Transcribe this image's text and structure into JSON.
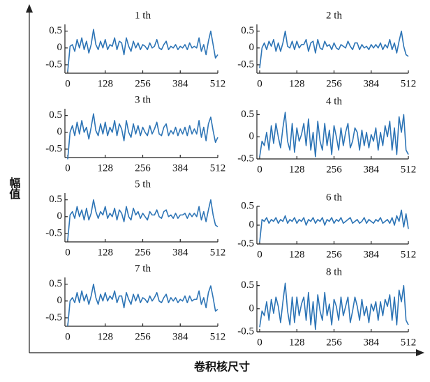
{
  "figure": {
    "y_label": "幅值",
    "x_label": "卷积核尺寸"
  },
  "chart_data": [
    {
      "type": "line",
      "title": "1 th",
      "color": "#2e75b6",
      "xlim": [
        0,
        512
      ],
      "xticks": [
        0,
        128,
        256,
        384,
        512
      ],
      "ylim": [
        -0.75,
        0.7
      ],
      "yticks": [
        -0.5,
        0,
        0.5
      ],
      "x": [
        0,
        8,
        16,
        24,
        32,
        40,
        48,
        56,
        64,
        72,
        80,
        88,
        96,
        104,
        112,
        120,
        128,
        136,
        144,
        152,
        160,
        168,
        176,
        184,
        192,
        200,
        208,
        216,
        224,
        232,
        240,
        248,
        256,
        264,
        272,
        280,
        288,
        296,
        304,
        312,
        320,
        328,
        336,
        344,
        352,
        360,
        368,
        376,
        384,
        392,
        400,
        408,
        416,
        424,
        432,
        440,
        448,
        456,
        464,
        472,
        480,
        488,
        496,
        504,
        512
      ],
      "values": [
        -0.7,
        0.05,
        0.1,
        -0.1,
        0.25,
        0.0,
        0.3,
        -0.05,
        0.2,
        -0.15,
        0.1,
        0.55,
        0.1,
        -0.05,
        0.2,
        0.0,
        0.25,
        -0.05,
        0.1,
        0.05,
        0.3,
        -0.05,
        0.2,
        0.15,
        -0.2,
        0.3,
        0.05,
        -0.1,
        0.2,
        0.0,
        0.15,
        -0.05,
        0.1,
        0.05,
        -0.05,
        0.15,
        0.0,
        0.05,
        0.25,
        0.0,
        -0.05,
        0.1,
        0.2,
        -0.05,
        0.05,
        0.0,
        0.1,
        -0.05,
        0.05,
        0.0,
        0.1,
        -0.05,
        0.15,
        0.0,
        0.05,
        0.0,
        0.3,
        -0.1,
        0.1,
        -0.2,
        0.2,
        0.5,
        0.1,
        -0.3,
        -0.2
      ]
    },
    {
      "type": "line",
      "title": "2 th",
      "color": "#2e75b6",
      "xlim": [
        0,
        512
      ],
      "xticks": [
        0,
        128,
        256,
        384,
        512
      ],
      "ylim": [
        -0.75,
        0.7
      ],
      "yticks": [
        -0.5,
        0,
        0.5
      ],
      "x": [
        0,
        8,
        16,
        24,
        32,
        40,
        48,
        56,
        64,
        72,
        80,
        88,
        96,
        104,
        112,
        120,
        128,
        136,
        144,
        152,
        160,
        168,
        176,
        184,
        192,
        200,
        208,
        216,
        224,
        232,
        240,
        248,
        256,
        264,
        272,
        280,
        288,
        296,
        304,
        312,
        320,
        328,
        336,
        344,
        352,
        360,
        368,
        376,
        384,
        392,
        400,
        408,
        416,
        424,
        432,
        440,
        448,
        456,
        464,
        472,
        480,
        488,
        496,
        504,
        512
      ],
      "values": [
        -0.6,
        0.0,
        0.15,
        -0.05,
        0.2,
        0.05,
        0.25,
        -0.1,
        0.15,
        -0.1,
        0.15,
        0.5,
        0.05,
        0.0,
        0.2,
        -0.05,
        0.2,
        0.0,
        0.1,
        0.1,
        0.25,
        -0.1,
        0.15,
        0.2,
        -0.15,
        0.25,
        0.0,
        -0.05,
        0.2,
        0.05,
        0.1,
        -0.05,
        0.15,
        0.0,
        -0.05,
        0.1,
        0.05,
        0.0,
        0.2,
        0.05,
        -0.05,
        0.15,
        0.15,
        -0.05,
        0.1,
        0.0,
        0.05,
        -0.05,
        0.1,
        0.0,
        0.1,
        0.0,
        0.15,
        -0.05,
        0.1,
        0.0,
        0.25,
        -0.05,
        0.15,
        -0.15,
        0.2,
        0.5,
        0.05,
        -0.2,
        -0.25
      ]
    },
    {
      "type": "line",
      "title": "3 th",
      "color": "#2e75b6",
      "xlim": [
        0,
        512
      ],
      "xticks": [
        0,
        128,
        256,
        384,
        512
      ],
      "ylim": [
        -0.75,
        0.7
      ],
      "yticks": [
        -0.5,
        0,
        0.5
      ],
      "x": [
        0,
        8,
        16,
        24,
        32,
        40,
        48,
        56,
        64,
        72,
        80,
        88,
        96,
        104,
        112,
        120,
        128,
        136,
        144,
        152,
        160,
        168,
        176,
        184,
        192,
        200,
        208,
        216,
        224,
        232,
        240,
        248,
        256,
        264,
        272,
        280,
        288,
        296,
        304,
        312,
        320,
        328,
        336,
        344,
        352,
        360,
        368,
        376,
        384,
        392,
        400,
        408,
        416,
        424,
        432,
        440,
        448,
        456,
        464,
        472,
        480,
        488,
        496,
        504,
        512
      ],
      "values": [
        -0.8,
        0.0,
        0.2,
        -0.1,
        0.3,
        -0.05,
        0.35,
        0.0,
        0.15,
        -0.2,
        0.15,
        0.55,
        0.05,
        -0.1,
        0.25,
        -0.05,
        0.3,
        -0.1,
        0.15,
        0.0,
        0.35,
        -0.1,
        0.25,
        0.1,
        -0.25,
        0.35,
        0.0,
        -0.15,
        0.25,
        -0.05,
        0.2,
        -0.1,
        0.15,
        0.0,
        -0.1,
        0.2,
        -0.05,
        0.1,
        0.3,
        -0.05,
        -0.1,
        0.15,
        0.25,
        -0.1,
        0.05,
        -0.05,
        0.15,
        -0.1,
        0.1,
        -0.05,
        0.15,
        -0.1,
        0.2,
        -0.05,
        0.1,
        -0.05,
        0.35,
        -0.15,
        0.15,
        -0.25,
        0.25,
        0.45,
        0.05,
        -0.3,
        -0.15
      ]
    },
    {
      "type": "line",
      "title": "4 th",
      "color": "#2e75b6",
      "xlim": [
        0,
        512
      ],
      "xticks": [
        0,
        128,
        256,
        384,
        512
      ],
      "ylim": [
        -0.5,
        0.6
      ],
      "yticks": [
        -0.5,
        0,
        0.5
      ],
      "x": [
        0,
        8,
        16,
        24,
        32,
        40,
        48,
        56,
        64,
        72,
        80,
        88,
        96,
        104,
        112,
        120,
        128,
        136,
        144,
        152,
        160,
        168,
        176,
        184,
        192,
        200,
        208,
        216,
        224,
        232,
        240,
        248,
        256,
        264,
        272,
        280,
        288,
        296,
        304,
        312,
        320,
        328,
        336,
        344,
        352,
        360,
        368,
        376,
        384,
        392,
        400,
        408,
        416,
        424,
        432,
        440,
        448,
        456,
        464,
        472,
        480,
        488,
        496,
        504,
        512
      ],
      "values": [
        -0.45,
        -0.1,
        -0.2,
        0.1,
        -0.3,
        0.25,
        -0.15,
        0.3,
        0.0,
        -0.25,
        0.2,
        0.55,
        -0.1,
        -0.3,
        0.3,
        -0.35,
        0.2,
        -0.1,
        0.05,
        0.3,
        -0.2,
        0.4,
        -0.3,
        0.1,
        -0.45,
        0.35,
        -0.1,
        -0.3,
        0.3,
        -0.2,
        0.15,
        -0.4,
        0.25,
        0.0,
        -0.3,
        0.2,
        -0.2,
        0.1,
        0.3,
        -0.25,
        -0.1,
        0.2,
        0.1,
        -0.3,
        0.15,
        -0.2,
        0.1,
        -0.25,
        0.05,
        -0.1,
        0.2,
        -0.3,
        0.1,
        -0.2,
        0.25,
        0.0,
        0.35,
        -0.3,
        0.2,
        -0.4,
        0.45,
        0.1,
        0.5,
        -0.3,
        -0.4
      ]
    },
    {
      "type": "line",
      "title": "5 th",
      "color": "#2e75b6",
      "xlim": [
        0,
        512
      ],
      "xticks": [
        0,
        128,
        256,
        384,
        512
      ],
      "ylim": [
        -0.75,
        0.7
      ],
      "yticks": [
        -0.5,
        0,
        0.5
      ],
      "x": [
        0,
        8,
        16,
        24,
        32,
        40,
        48,
        56,
        64,
        72,
        80,
        88,
        96,
        104,
        112,
        120,
        128,
        136,
        144,
        152,
        160,
        168,
        176,
        184,
        192,
        200,
        208,
        216,
        224,
        232,
        240,
        248,
        256,
        264,
        272,
        280,
        288,
        296,
        304,
        312,
        320,
        328,
        336,
        344,
        352,
        360,
        368,
        376,
        384,
        392,
        400,
        408,
        416,
        424,
        432,
        440,
        448,
        456,
        464,
        472,
        480,
        488,
        496,
        504,
        512
      ],
      "values": [
        -0.7,
        0.05,
        0.15,
        -0.05,
        0.3,
        0.0,
        0.2,
        -0.1,
        0.25,
        -0.1,
        0.1,
        0.5,
        0.15,
        -0.05,
        0.15,
        0.05,
        0.3,
        -0.05,
        0.1,
        0.0,
        0.25,
        -0.1,
        0.2,
        0.1,
        -0.15,
        0.3,
        0.0,
        -0.1,
        0.25,
        0.05,
        0.15,
        -0.05,
        0.1,
        0.0,
        -0.1,
        0.15,
        0.05,
        0.05,
        0.2,
        0.0,
        -0.05,
        0.15,
        0.2,
        0.0,
        0.05,
        -0.05,
        0.1,
        -0.05,
        0.05,
        0.05,
        0.1,
        -0.05,
        0.1,
        0.0,
        0.1,
        0.0,
        0.3,
        -0.1,
        0.15,
        -0.15,
        0.2,
        0.5,
        0.05,
        -0.25,
        -0.3
      ]
    },
    {
      "type": "line",
      "title": "6 th",
      "color": "#2e75b6",
      "xlim": [
        0,
        512
      ],
      "xticks": [
        0,
        128,
        256,
        384,
        512
      ],
      "ylim": [
        -0.5,
        0.5
      ],
      "yticks": [
        -0.5,
        0,
        0.5
      ],
      "x": [
        0,
        8,
        16,
        24,
        32,
        40,
        48,
        56,
        64,
        72,
        80,
        88,
        96,
        104,
        112,
        120,
        128,
        136,
        144,
        152,
        160,
        168,
        176,
        184,
        192,
        200,
        208,
        216,
        224,
        232,
        240,
        248,
        256,
        264,
        272,
        280,
        288,
        296,
        304,
        312,
        320,
        328,
        336,
        344,
        352,
        360,
        368,
        376,
        384,
        392,
        400,
        408,
        416,
        424,
        432,
        440,
        448,
        456,
        464,
        472,
        480,
        488,
        496,
        504,
        512
      ],
      "values": [
        -0.45,
        0.15,
        0.1,
        0.2,
        0.05,
        0.15,
        0.1,
        0.2,
        0.05,
        0.15,
        0.1,
        0.25,
        0.05,
        0.15,
        0.1,
        0.2,
        0.05,
        0.15,
        0.1,
        0.2,
        0.0,
        0.15,
        0.1,
        0.2,
        0.05,
        0.15,
        0.1,
        0.2,
        0.0,
        0.15,
        0.1,
        0.2,
        0.05,
        0.15,
        0.1,
        0.2,
        0.05,
        0.1,
        0.15,
        0.2,
        0.05,
        0.1,
        0.15,
        0.05,
        0.1,
        0.2,
        0.05,
        0.15,
        0.1,
        0.05,
        0.15,
        0.1,
        0.2,
        0.05,
        0.1,
        0.15,
        0.05,
        0.2,
        0.0,
        0.25,
        0.1,
        0.4,
        -0.05,
        0.3,
        -0.1
      ]
    },
    {
      "type": "line",
      "title": "7 th",
      "color": "#2e75b6",
      "xlim": [
        0,
        512
      ],
      "xticks": [
        0,
        128,
        256,
        384,
        512
      ],
      "ylim": [
        -0.75,
        0.7
      ],
      "yticks": [
        -0.5,
        0,
        0.5
      ],
      "x": [
        0,
        8,
        16,
        24,
        32,
        40,
        48,
        56,
        64,
        72,
        80,
        88,
        96,
        104,
        112,
        120,
        128,
        136,
        144,
        152,
        160,
        168,
        176,
        184,
        192,
        200,
        208,
        216,
        224,
        232,
        240,
        248,
        256,
        264,
        272,
        280,
        288,
        296,
        304,
        312,
        320,
        328,
        336,
        344,
        352,
        360,
        368,
        376,
        384,
        392,
        400,
        408,
        416,
        424,
        432,
        440,
        448,
        456,
        464,
        472,
        480,
        488,
        496,
        504,
        512
      ],
      "values": [
        -0.75,
        0.0,
        0.1,
        -0.05,
        0.25,
        -0.05,
        0.3,
        0.0,
        0.2,
        -0.1,
        0.15,
        0.5,
        0.1,
        -0.1,
        0.2,
        0.0,
        0.25,
        0.0,
        0.15,
        0.05,
        0.3,
        -0.05,
        0.15,
        0.15,
        -0.2,
        0.25,
        0.05,
        -0.1,
        0.2,
        0.0,
        0.2,
        -0.05,
        0.1,
        0.05,
        -0.05,
        0.15,
        0.0,
        0.1,
        0.25,
        0.0,
        -0.05,
        0.1,
        0.2,
        -0.05,
        0.1,
        0.0,
        0.1,
        -0.05,
        0.05,
        0.0,
        0.15,
        -0.05,
        0.15,
        0.0,
        0.05,
        0.05,
        0.3,
        -0.1,
        0.1,
        -0.2,
        0.25,
        0.45,
        0.1,
        -0.3,
        -0.25
      ]
    },
    {
      "type": "line",
      "title": "8 th",
      "color": "#2e75b6",
      "xlim": [
        0,
        512
      ],
      "xticks": [
        0,
        128,
        256,
        384,
        512
      ],
      "ylim": [
        -0.5,
        0.6
      ],
      "yticks": [
        -0.5,
        0,
        0.5
      ],
      "x": [
        0,
        8,
        16,
        24,
        32,
        40,
        48,
        56,
        64,
        72,
        80,
        88,
        96,
        104,
        112,
        120,
        128,
        136,
        144,
        152,
        160,
        168,
        176,
        184,
        192,
        200,
        208,
        216,
        224,
        232,
        240,
        248,
        256,
        264,
        272,
        280,
        288,
        296,
        304,
        312,
        320,
        328,
        336,
        344,
        352,
        360,
        368,
        376,
        384,
        392,
        400,
        408,
        416,
        424,
        432,
        440,
        448,
        456,
        464,
        472,
        480,
        488,
        496,
        504,
        512
      ],
      "values": [
        -0.4,
        -0.05,
        -0.15,
        0.15,
        -0.25,
        0.2,
        -0.1,
        0.25,
        0.05,
        -0.3,
        0.15,
        0.55,
        -0.05,
        -0.35,
        0.25,
        -0.3,
        0.25,
        -0.15,
        0.1,
        0.25,
        -0.25,
        0.35,
        -0.35,
        0.15,
        -0.45,
        0.3,
        -0.05,
        -0.25,
        0.35,
        -0.15,
        0.1,
        -0.35,
        0.2,
        0.05,
        -0.25,
        0.25,
        -0.15,
        0.05,
        0.25,
        -0.3,
        -0.05,
        0.25,
        0.05,
        -0.25,
        0.2,
        -0.15,
        0.05,
        -0.3,
        0.1,
        -0.05,
        0.15,
        -0.25,
        0.15,
        -0.15,
        0.2,
        0.05,
        0.3,
        -0.25,
        0.25,
        -0.35,
        0.4,
        0.15,
        0.5,
        -0.25,
        -0.35
      ]
    }
  ]
}
